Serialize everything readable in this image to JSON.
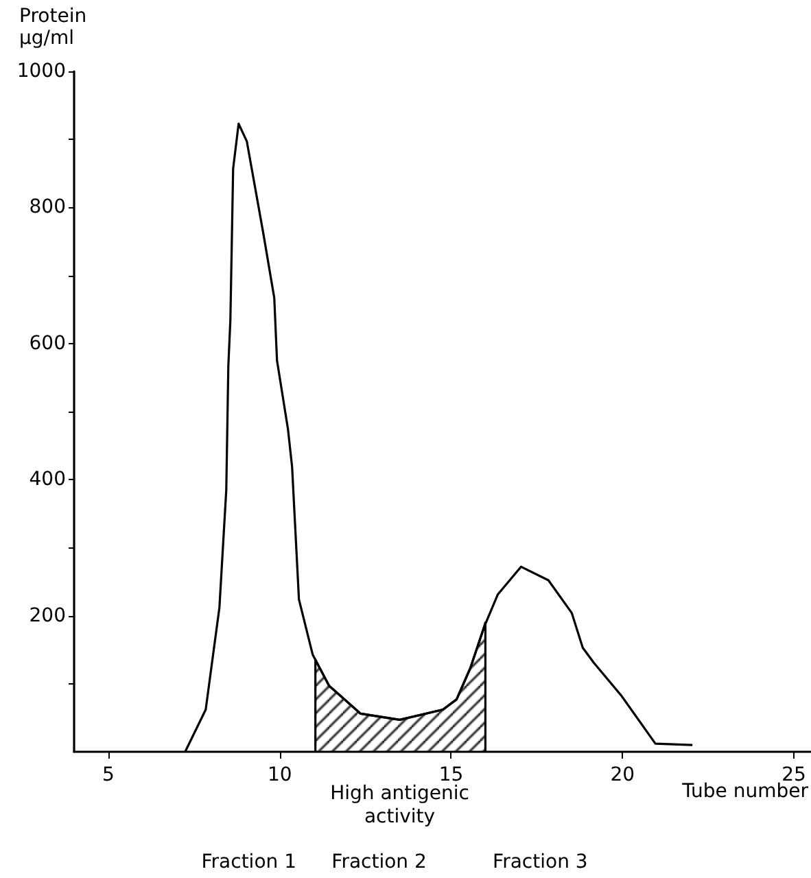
{
  "chart_data": {
    "type": "line",
    "ylabel": "Protein\nµg/ml",
    "xlabel": "Tube number",
    "xlim": [
      4,
      25.5
    ],
    "xticks": [
      5,
      10,
      15,
      20,
      25
    ],
    "ylim": [
      0,
      1000
    ],
    "yticks": [
      {
        "value": 100,
        "label": null
      },
      200,
      {
        "value": 300,
        "label": null
      },
      400,
      {
        "value": 500,
        "label": null
      },
      600,
      {
        "value": 700,
        "label": null
      },
      800,
      {
        "value": 900,
        "label": null
      },
      1000
    ],
    "series": [
      {
        "color": "#000000",
        "x": [
          7.24,
          7.84,
          8.24,
          8.44,
          8.5,
          8.56,
          8.64,
          8.8,
          9.04,
          9.52,
          9.84,
          9.92,
          10.24,
          10.36,
          10.56,
          10.96,
          11.44,
          12.36,
          13.5,
          14.76,
          15.16,
          15.56,
          15.96,
          16.36,
          17.04,
          17.84,
          18.52,
          18.84,
          19.16,
          19.96,
          20.96,
          22.04
        ],
        "values": [
          0,
          62,
          212,
          385,
          567,
          635,
          857,
          923,
          897,
          762,
          667,
          575,
          474,
          419,
          224,
          143,
          97,
          56,
          47,
          62,
          77,
          123,
          183,
          231,
          272,
          252,
          204,
          153,
          131,
          83,
          12,
          10
        ]
      },
      {
        "type": "area",
        "color": "#000000",
        "x": [
          11.04,
          11.04,
          11.44,
          12.36,
          13.5,
          14.76,
          15.16,
          15.56,
          15.96,
          16,
          16
        ],
        "values": [
          0,
          135,
          97,
          56,
          47,
          62,
          77,
          123,
          183,
          190,
          0
        ]
      }
    ],
    "annotations": [
      "High antigenic\nactivity",
      "Fraction 1",
      "Fraction 2",
      "Fraction 3"
    ]
  }
}
